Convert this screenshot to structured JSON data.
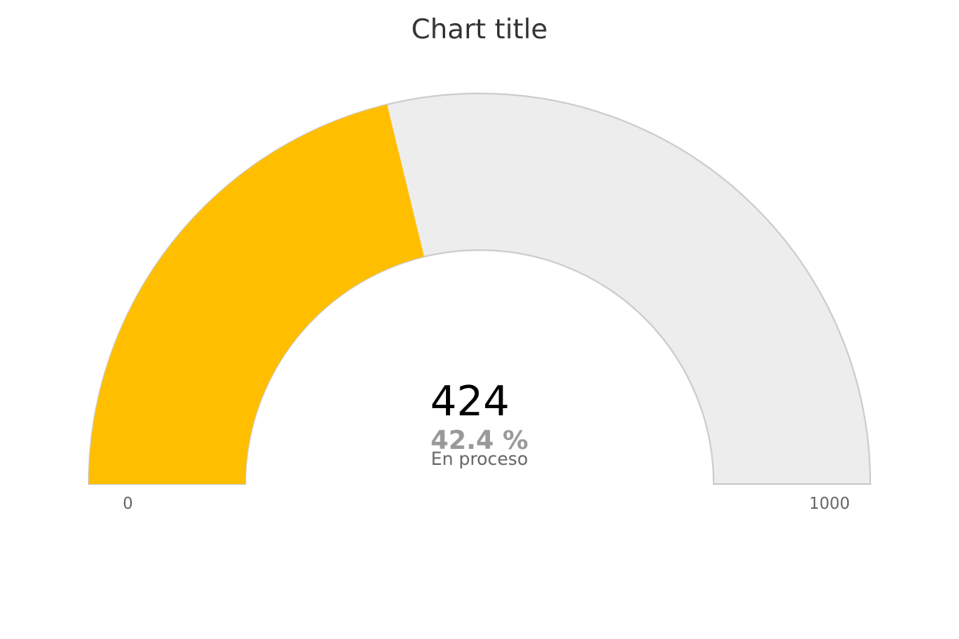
{
  "chart_data": {
    "type": "gauge",
    "title": "Chart title",
    "value": 424,
    "min": 0,
    "max": 1000,
    "value_label": "424",
    "percent_label": "42.4 %",
    "status_label": "En proceso",
    "min_label": "0",
    "max_label": "1000",
    "colors": {
      "fill": "#FFBF00",
      "track": "#EDEDED",
      "track_border": "#CCCCCC",
      "title": "#333333",
      "value_text": "#000000",
      "percent_text": "#999999",
      "status_text": "#666666",
      "axis_text": "#666666"
    }
  }
}
